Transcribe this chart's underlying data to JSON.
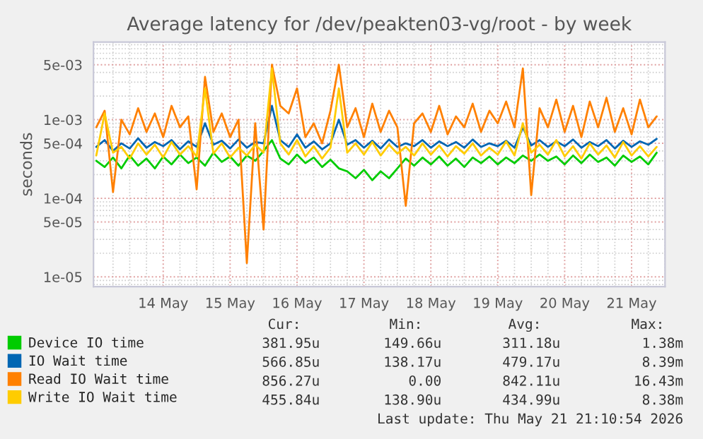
{
  "chart_data": {
    "type": "line",
    "title": "Average latency for /dev/peakten03-vg/root - by week",
    "ylabel": "seconds",
    "log": "y",
    "grid": true,
    "legend": "bottom",
    "marker": "none",
    "line_style": "solid",
    "xlim": [
      "2026-05-13T11:00",
      "2026-05-22T00:00"
    ],
    "xticks": [
      {
        "value": "2026-05-14T12:00",
        "label": "14 May"
      },
      {
        "value": "2026-05-15T12:00",
        "label": "15 May"
      },
      {
        "value": "2026-05-16T12:00",
        "label": "16 May"
      },
      {
        "value": "2026-05-17T12:00",
        "label": "17 May"
      },
      {
        "value": "2026-05-18T12:00",
        "label": "18 May"
      },
      {
        "value": "2026-05-19T12:00",
        "label": "19 May"
      },
      {
        "value": "2026-05-20T12:00",
        "label": "20 May"
      },
      {
        "value": "2026-05-21T12:00",
        "label": "21 May"
      }
    ],
    "ylim": [
      7.5e-06,
      0.0097
    ],
    "yticks": [
      {
        "value": 1e-05,
        "label": "1e-05"
      },
      {
        "value": 5e-05,
        "label": "5e-05"
      },
      {
        "value": 0.0001,
        "label": "1e-04"
      },
      {
        "value": 0.0005,
        "label": "5e-04"
      },
      {
        "value": 0.001,
        "label": "1e-03"
      },
      {
        "value": 0.005,
        "label": "5e-03"
      }
    ],
    "x": [
      "2026-05-13T12:00",
      "2026-05-13T15:00",
      "2026-05-13T18:00",
      "2026-05-13T21:00",
      "2026-05-14T00:00",
      "2026-05-14T03:00",
      "2026-05-14T06:00",
      "2026-05-14T09:00",
      "2026-05-14T12:00",
      "2026-05-14T15:00",
      "2026-05-14T18:00",
      "2026-05-14T21:00",
      "2026-05-15T00:00",
      "2026-05-15T03:00",
      "2026-05-15T06:00",
      "2026-05-15T09:00",
      "2026-05-15T12:00",
      "2026-05-15T15:00",
      "2026-05-15T18:00",
      "2026-05-15T21:00",
      "2026-05-16T00:00",
      "2026-05-16T03:00",
      "2026-05-16T06:00",
      "2026-05-16T09:00",
      "2026-05-16T12:00",
      "2026-05-16T15:00",
      "2026-05-16T18:00",
      "2026-05-16T21:00",
      "2026-05-17T00:00",
      "2026-05-17T03:00",
      "2026-05-17T06:00",
      "2026-05-17T09:00",
      "2026-05-17T12:00",
      "2026-05-17T15:00",
      "2026-05-17T18:00",
      "2026-05-17T21:00",
      "2026-05-18T00:00",
      "2026-05-18T03:00",
      "2026-05-18T06:00",
      "2026-05-18T09:00",
      "2026-05-18T12:00",
      "2026-05-18T15:00",
      "2026-05-18T18:00",
      "2026-05-18T21:00",
      "2026-05-19T00:00",
      "2026-05-19T03:00",
      "2026-05-19T06:00",
      "2026-05-19T09:00",
      "2026-05-19T12:00",
      "2026-05-19T15:00",
      "2026-05-19T18:00",
      "2026-05-19T21:00",
      "2026-05-20T00:00",
      "2026-05-20T03:00",
      "2026-05-20T06:00",
      "2026-05-20T09:00",
      "2026-05-20T12:00",
      "2026-05-20T15:00",
      "2026-05-20T18:00",
      "2026-05-20T21:00",
      "2026-05-21T00:00",
      "2026-05-21T03:00",
      "2026-05-21T06:00",
      "2026-05-21T09:00",
      "2026-05-21T12:00",
      "2026-05-21T15:00",
      "2026-05-21T18:00",
      "2026-05-21T21:00"
    ],
    "series": [
      {
        "name": "Device IO time",
        "color": "#00cc00",
        "values": [
          0.0003,
          0.00025,
          0.00033,
          0.00024,
          0.00035,
          0.00026,
          0.00032,
          0.00024,
          0.00034,
          0.00027,
          0.00036,
          0.00028,
          0.00033,
          0.00026,
          0.00038,
          0.00029,
          0.00034,
          0.00026,
          0.00035,
          0.0003,
          0.0004,
          0.00055,
          0.00032,
          0.00027,
          0.00036,
          0.00028,
          0.00033,
          0.00025,
          0.00031,
          0.00024,
          0.00022,
          0.00018,
          0.00023,
          0.00017,
          0.00022,
          0.00018,
          0.00024,
          0.00032,
          0.00026,
          0.00033,
          0.00027,
          0.00034,
          0.00026,
          0.00032,
          0.00025,
          0.00033,
          0.00028,
          0.00034,
          0.00027,
          0.00033,
          0.00028,
          0.00035,
          0.0003,
          0.00036,
          0.0003,
          0.00034,
          0.00027,
          0.00035,
          0.00028,
          0.00036,
          0.00029,
          0.00033,
          0.00026,
          0.00035,
          0.00029,
          0.00034,
          0.00027,
          0.00038
        ]
      },
      {
        "name": "IO Wait time",
        "color": "#0066b3",
        "values": [
          0.00045,
          0.00055,
          0.0004,
          0.0005,
          0.00043,
          0.00058,
          0.00044,
          0.00052,
          0.00046,
          0.00055,
          0.00042,
          0.00053,
          0.00045,
          0.0009,
          0.00048,
          0.00054,
          0.00043,
          0.00056,
          0.00044,
          0.00052,
          0.0005,
          0.0015,
          0.00055,
          0.00045,
          0.00065,
          0.00044,
          0.00053,
          0.00042,
          0.0005,
          0.001,
          0.00048,
          0.00055,
          0.00044,
          0.00054,
          0.00043,
          0.00056,
          0.00045,
          0.0005,
          0.00046,
          0.00055,
          0.00044,
          0.00053,
          0.00046,
          0.00052,
          0.00044,
          0.00056,
          0.00045,
          0.0005,
          0.00046,
          0.00054,
          0.00044,
          0.0008,
          0.00047,
          0.00055,
          0.00045,
          0.00053,
          0.00046,
          0.00056,
          0.00044,
          0.00052,
          0.00046,
          0.00055,
          0.00043,
          0.00054,
          0.00045,
          0.00053,
          0.00048,
          0.00057
        ]
      },
      {
        "name": "Read IO Wait time",
        "color": "#ff8000",
        "values": [
          0.0008,
          0.0013,
          0.00012,
          0.001,
          0.00065,
          0.0014,
          0.0007,
          0.0012,
          0.0006,
          0.0015,
          0.0008,
          0.0011,
          0.00013,
          0.0035,
          0.0007,
          0.0012,
          0.0006,
          0.001,
          1.5e-05,
          0.0009,
          4e-05,
          0.005,
          0.0015,
          0.0012,
          0.0025,
          0.0006,
          0.0009,
          0.0005,
          0.0013,
          0.005,
          0.0008,
          0.0014,
          0.0006,
          0.0016,
          0.0007,
          0.0013,
          0.0008,
          8e-05,
          0.0009,
          0.0012,
          0.0007,
          0.0015,
          0.00065,
          0.0011,
          0.0008,
          0.0016,
          0.0007,
          0.0013,
          0.0009,
          0.0017,
          0.0008,
          0.0045,
          0.00011,
          0.0014,
          0.0008,
          0.0018,
          0.0007,
          0.0015,
          0.0006,
          0.0017,
          0.0008,
          0.0019,
          0.0007,
          0.0014,
          0.00065,
          0.0018,
          0.0008,
          0.0011
        ]
      },
      {
        "name": "Write IO Wait time",
        "color": "#ffcc00",
        "values": [
          0.00035,
          0.0012,
          0.00038,
          0.00045,
          0.00032,
          0.0005,
          0.00036,
          0.00048,
          0.00033,
          0.00052,
          0.00036,
          0.00046,
          0.00034,
          0.0025,
          0.00037,
          0.0005,
          0.00033,
          0.00044,
          0.00035,
          0.00048,
          0.00038,
          0.0045,
          0.0005,
          0.00036,
          0.00055,
          0.00034,
          0.00046,
          0.00032,
          0.00044,
          0.0025,
          0.00038,
          0.0005,
          0.00036,
          0.00052,
          0.00035,
          0.00048,
          0.00037,
          0.00045,
          0.00035,
          0.0005,
          0.00036,
          0.00047,
          0.00034,
          0.00046,
          0.00037,
          0.0005,
          0.00035,
          0.00044,
          0.00036,
          0.00053,
          0.00035,
          0.0009,
          0.00038,
          0.00048,
          0.00036,
          0.00055,
          0.00034,
          0.00046,
          0.00032,
          0.0005,
          0.00036,
          0.00047,
          0.00033,
          0.00052,
          0.00035,
          0.00046,
          0.00034,
          0.00045
        ]
      }
    ],
    "annotations": [
      "Cur:",
      "Min:",
      "Avg:",
      "Max:",
      "381.95u",
      "149.66u",
      "311.18u",
      "1.38m",
      "566.85u",
      "138.17u",
      "479.17u",
      "8.39m",
      "856.27u",
      "0.00",
      "842.11u",
      "16.43m",
      "455.84u",
      "138.90u",
      "434.99u",
      "8.38m",
      "Last update: Thu May 21 21:10:54 2026"
    ]
  }
}
